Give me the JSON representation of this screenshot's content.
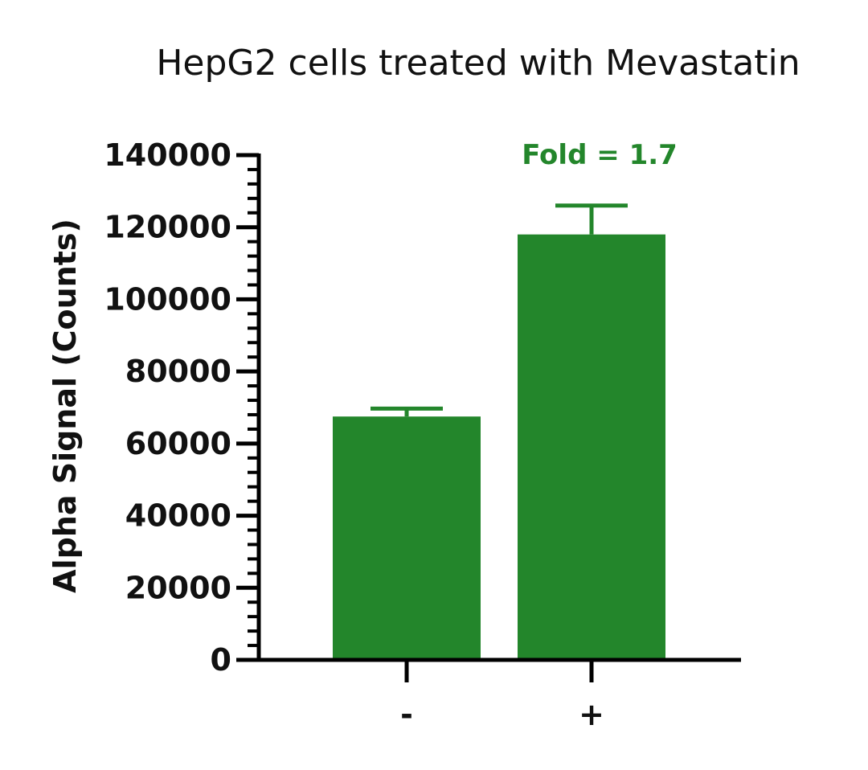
{
  "colors": {
    "bar": "#23862B",
    "axis": "#000000",
    "text": "#111111",
    "annotation": "#23862B"
  },
  "chart_data": {
    "type": "bar",
    "title": "HepG2 cells treated with Mevastatin",
    "xlabel": "",
    "ylabel": "Alpha Signal (Counts)",
    "categories": [
      "-",
      "+"
    ],
    "values": [
      67500,
      118000
    ],
    "error": [
      2200,
      8000
    ],
    "ylim": [
      0,
      140000
    ],
    "yticks": [
      0,
      20000,
      40000,
      60000,
      80000,
      100000,
      120000,
      140000
    ],
    "ytick_labels": [
      "0",
      "20000",
      "40000",
      "60000",
      "80000",
      "100000",
      "120000",
      "140000"
    ],
    "minor_ticks_per_major": 4,
    "grid": false,
    "legend": "none",
    "annotations": [
      {
        "text": "Fold = 1.7",
        "category": "+",
        "y": 140000
      }
    ]
  }
}
